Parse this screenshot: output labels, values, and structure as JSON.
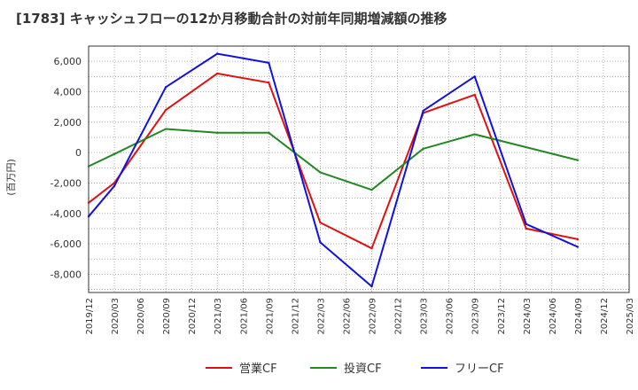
{
  "chart_data": {
    "type": "line",
    "title": "[1783]  キャッシュフローの12か月移動合計の対前年同期増減額の推移",
    "ylabel": "(百万円)",
    "xlabel": "",
    "ylim": [
      -9200,
      7000
    ],
    "yticks": [
      6000,
      4000,
      2000,
      0,
      -2000,
      -4000,
      -6000,
      -8000
    ],
    "ytick_labels": [
      "6,000",
      "4,000",
      "2,000",
      "0",
      "-2,000",
      "-4,000",
      "-6,000",
      "-8,000"
    ],
    "categories": [
      "2019/12",
      "2020/03",
      "2020/06",
      "2020/09",
      "2020/12",
      "2021/03",
      "2021/06",
      "2021/09",
      "2021/12",
      "2022/03",
      "2022/06",
      "2022/09",
      "2022/12",
      "2023/03",
      "2023/06",
      "2023/09",
      "2023/12",
      "2024/03",
      "2024/06",
      "2024/09",
      "2024/12",
      "2025/03"
    ],
    "grid": true,
    "legend_position": "bottom",
    "series": [
      {
        "name": "営業CF",
        "color": "#dd1111",
        "values": [
          -3300,
          -2000,
          null,
          2800,
          null,
          5200,
          null,
          4600,
          null,
          -4600,
          null,
          -6300,
          null,
          2600,
          null,
          3800,
          null,
          -5000,
          null,
          -5700,
          null,
          null
        ]
      },
      {
        "name": "投資CF",
        "color": "#228822",
        "values": [
          -900,
          -100,
          null,
          1550,
          null,
          1300,
          null,
          1300,
          null,
          -1300,
          null,
          -2450,
          null,
          250,
          null,
          1200,
          null,
          null,
          null,
          -500,
          null,
          null
        ]
      },
      {
        "name": "フリーCF",
        "color": "#1111dd",
        "values": [
          -4200,
          -2200,
          null,
          4300,
          null,
          6500,
          null,
          5900,
          null,
          -5900,
          null,
          -8800,
          null,
          2750,
          null,
          5000,
          null,
          -4700,
          null,
          -6200,
          null,
          null
        ]
      }
    ]
  }
}
